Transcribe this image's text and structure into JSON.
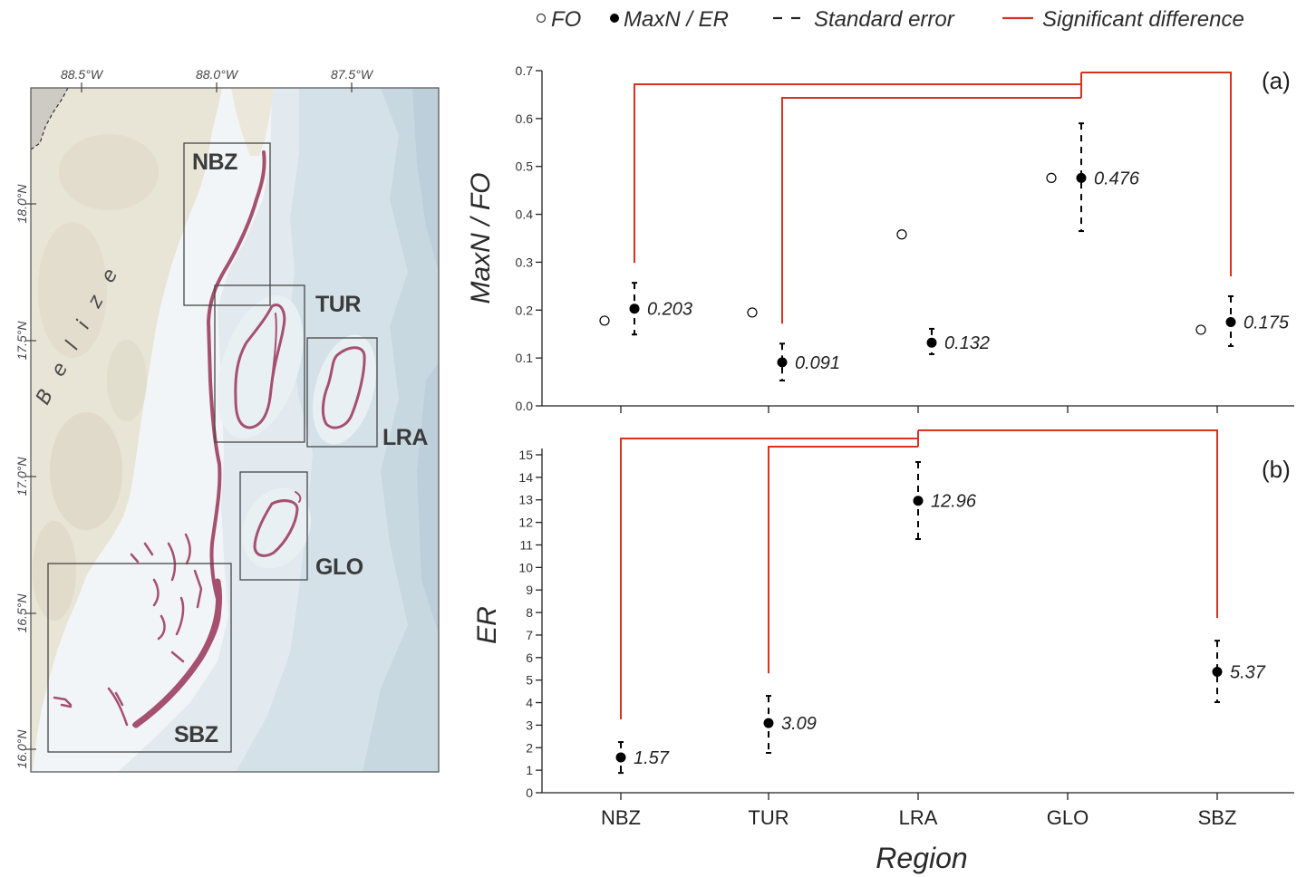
{
  "legend": {
    "fo": "FO",
    "maxn_er": "MaxN / ER",
    "standard_error": "Standard error",
    "significant_difference": "Significant difference"
  },
  "colors": {
    "significance": "#d8321e",
    "marker": "#000000",
    "reef": "#a5506e"
  },
  "map": {
    "lon_ticks": [
      "88.5°W",
      "88.0°W",
      "87.5°W"
    ],
    "lat_ticks": [
      "18.0°N",
      "17.5°N",
      "17.0°N",
      "16.5°N",
      "16.0°N"
    ],
    "country_label": "Belize",
    "regions": {
      "nbz": "NBZ",
      "tur": "TUR",
      "lra": "LRA",
      "glo": "GLO",
      "sbz": "SBZ"
    }
  },
  "chart_data": [
    {
      "type": "scatter",
      "panel_label": "(a)",
      "ylabel": "MaxN / FO",
      "xlabel": "",
      "ylim": [
        0,
        0.7
      ],
      "yticks": [
        "0.0",
        "0.1",
        "0.2",
        "0.3",
        "0.4",
        "0.5",
        "0.6",
        "0.7"
      ],
      "categories": [
        "NBZ",
        "TUR",
        "LRA",
        "GLO",
        "SBZ"
      ],
      "series": [
        {
          "name": "FO",
          "marker": "open-circle",
          "values": [
            0.178,
            0.195,
            0.358,
            0.476,
            0.159
          ]
        },
        {
          "name": "MaxN / ER",
          "marker": "filled-circle",
          "values": [
            0.203,
            0.091,
            0.132,
            0.476,
            0.175
          ],
          "labels": [
            "0.203",
            "0.091",
            "0.132",
            "0.476",
            "0.175"
          ],
          "se_low": [
            0.149,
            0.053,
            0.108,
            0.365,
            0.125
          ],
          "se_high": [
            0.257,
            0.13,
            0.161,
            0.59,
            0.229
          ]
        }
      ],
      "significant_pairs": [
        [
          "NBZ",
          "GLO"
        ],
        [
          "TUR",
          "GLO"
        ],
        [
          "GLO",
          "SBZ"
        ]
      ]
    },
    {
      "type": "scatter",
      "panel_label": "(b)",
      "ylabel": "ER",
      "xlabel": "Region",
      "ylim": [
        0,
        15
      ],
      "yticks": [
        "0",
        "1",
        "2",
        "3",
        "4",
        "5",
        "6",
        "7",
        "8",
        "9",
        "10",
        "11",
        "12",
        "13",
        "14",
        "15"
      ],
      "categories": [
        "NBZ",
        "TUR",
        "LRA",
        "GLO",
        "SBZ"
      ],
      "series": [
        {
          "name": "MaxN / ER",
          "marker": "filled-circle",
          "values": [
            1.57,
            3.09,
            12.96,
            null,
            5.37
          ],
          "labels": [
            "1.57",
            "3.09",
            "12.96",
            null,
            "5.37"
          ],
          "se_low": [
            0.88,
            1.77,
            11.26,
            null,
            4.02
          ],
          "se_high": [
            2.25,
            4.3,
            14.68,
            null,
            6.75
          ]
        }
      ],
      "significant_pairs": [
        [
          "NBZ",
          "LRA"
        ],
        [
          "TUR",
          "LRA"
        ],
        [
          "LRA",
          "SBZ"
        ]
      ]
    }
  ]
}
